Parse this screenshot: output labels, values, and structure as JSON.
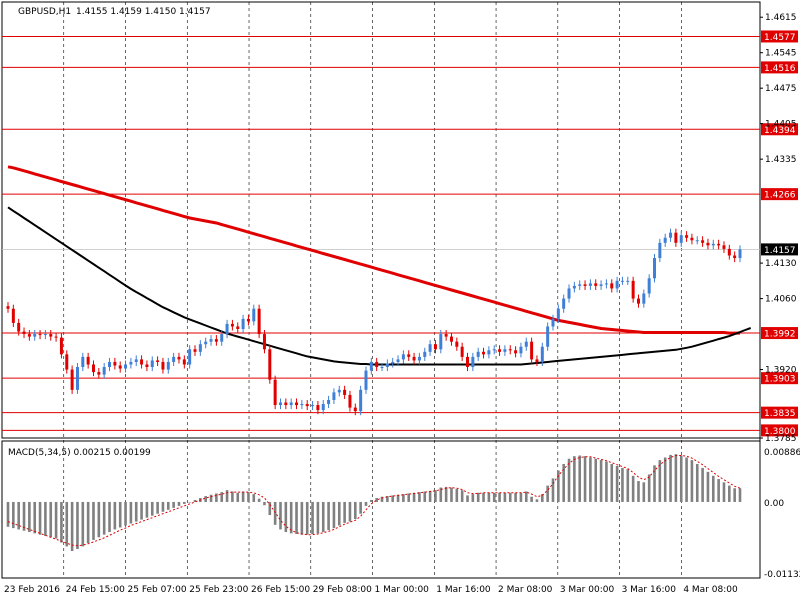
{
  "header": {
    "symbol": "GBPUSD,H1",
    "ohlc": "1.4155 1.4159 1.4150 1.4157"
  },
  "macd": {
    "label": "MACD(5,34,5) 0.00215 0.00199",
    "axis_labels": [
      "0.00886",
      "0.00",
      "-0.01132"
    ]
  },
  "colors": {
    "bull": "#3f7fd8",
    "bear": "#e00000",
    "ma_slow": "#e00000",
    "ma_fast": "#000000",
    "level_line": "#e00000",
    "level_label_bg": "#e00000",
    "grid": "#000000",
    "macd_hist": "#808080",
    "macd_signal": "#e00000"
  },
  "chart_data": [
    {
      "type": "candlestick",
      "title": "GBPUSD,H1",
      "ylim": [
        1.3785,
        1.4645
      ],
      "price_axis_ticks": [
        "1.4615",
        "1.4545",
        "1.4475",
        "1.4405",
        "1.4335",
        "1.4130",
        "1.4060",
        "1.3920",
        "1.3785"
      ],
      "levels": [
        "1.4577",
        "1.4516",
        "1.4394",
        "1.4266",
        "1.3992",
        "1.3903",
        "1.3835",
        "1.3800"
      ],
      "current_price": "1.4157",
      "x_ticks": [
        "23 Feb 2016",
        "24 Feb 15:00",
        "25 Feb 07:00",
        "25 Feb 23:00",
        "26 Feb 15:00",
        "29 Feb 08:00",
        "1 Mar 00:00",
        "1 Mar 16:00",
        "2 Mar 08:00",
        "3 Mar 00:00",
        "3 Mar 16:00",
        "4 Mar 08:00"
      ],
      "close_series": [
        1.404,
        1.4012,
        1.3995,
        1.399,
        1.3985,
        1.399,
        1.3988,
        1.399,
        1.3985,
        1.3983,
        1.395,
        1.392,
        1.388,
        1.3925,
        1.3945,
        1.393,
        1.3915,
        1.391,
        1.3925,
        1.3935,
        1.3928,
        1.3922,
        1.393,
        1.3935,
        1.394,
        1.393,
        1.3925,
        1.3938,
        1.3935,
        1.392,
        1.3935,
        1.3945,
        1.394,
        1.393,
        1.396,
        1.3955,
        1.397,
        1.3975,
        1.398,
        1.3975,
        1.399,
        1.401,
        1.4005,
        1.4,
        1.402,
        1.4015,
        1.404,
        1.399,
        1.396,
        1.39,
        1.385,
        1.3855,
        1.385,
        1.3855,
        1.385,
        1.3852,
        1.3848,
        1.385,
        1.384,
        1.3852,
        1.386,
        1.3875,
        1.388,
        1.387,
        1.3845,
        1.3838,
        1.388,
        1.3918,
        1.3935,
        1.3925,
        1.3925,
        1.3932,
        1.3935,
        1.394,
        1.395,
        1.3945,
        1.3938,
        1.3945,
        1.3955,
        1.397,
        1.396,
        1.399,
        1.3985,
        1.3975,
        1.3965,
        1.3945,
        1.3925,
        1.3945,
        1.3955,
        1.395,
        1.3958,
        1.396,
        1.3955,
        1.396,
        1.3958,
        1.3952,
        1.3965,
        1.3975,
        1.394,
        1.3935,
        1.3965,
        1.4005,
        1.402,
        1.404,
        1.406,
        1.408,
        1.4085,
        1.4088,
        1.4085,
        1.409,
        1.4085,
        1.4088,
        1.409,
        1.408,
        1.4095,
        1.4095,
        1.4095,
        1.406,
        1.405,
        1.407,
        1.41,
        1.414,
        1.417,
        1.418,
        1.419,
        1.417,
        1.4185,
        1.418,
        1.4175,
        1.4175,
        1.417,
        1.4165,
        1.4168,
        1.4165,
        1.4158,
        1.4145,
        1.414,
        1.4157
      ],
      "ma_slow": [
        1.432,
        1.4318,
        1.4315,
        1.4312,
        1.4309,
        1.4306,
        1.4303,
        1.43,
        1.4297,
        1.4294,
        1.4291,
        1.4288,
        1.4285,
        1.4282,
        1.4279,
        1.4276,
        1.4273,
        1.427,
        1.4267,
        1.4264,
        1.4261,
        1.4258,
        1.4255,
        1.4252,
        1.4249,
        1.4246,
        1.4243,
        1.424,
        1.4237,
        1.4234,
        1.4231,
        1.4228,
        1.4225,
        1.4222,
        1.4219,
        1.4217,
        1.4215,
        1.4213,
        1.4211,
        1.4209,
        1.4206,
        1.4203,
        1.42,
        1.4197,
        1.4194,
        1.4191,
        1.4188,
        1.4185,
        1.4182,
        1.4179,
        1.4176,
        1.4173,
        1.417,
        1.4167,
        1.4164,
        1.4161,
        1.4158,
        1.4155,
        1.4152,
        1.4149,
        1.4146,
        1.4143,
        1.414,
        1.4137,
        1.4134,
        1.4131,
        1.4128,
        1.4125,
        1.4122,
        1.4119,
        1.4116,
        1.4113,
        1.411,
        1.4107,
        1.4104,
        1.4101,
        1.4098,
        1.4095,
        1.4092,
        1.4089,
        1.4086,
        1.4083,
        1.408,
        1.4077,
        1.4074,
        1.4071,
        1.4068,
        1.4065,
        1.4062,
        1.4059,
        1.4056,
        1.4053,
        1.405,
        1.4047,
        1.4044,
        1.4041,
        1.4038,
        1.4035,
        1.4032,
        1.4029,
        1.4026,
        1.4023,
        1.402,
        1.4017,
        1.4015,
        1.4013,
        1.4011,
        1.4009,
        1.4007,
        1.4005,
        1.4003,
        1.4001,
        1.4,
        1.3999,
        1.3998,
        1.3997,
        1.3996,
        1.3995,
        1.3994,
        1.3993,
        1.3993,
        1.3993,
        1.3993,
        1.3993,
        1.3993,
        1.3993,
        1.3993,
        1.3993,
        1.3993,
        1.3993,
        1.3993,
        1.3993,
        1.3993,
        1.3993,
        1.3993,
        1.3992,
        1.3992,
        1.3992
      ],
      "ma_fast": [
        1.424,
        1.4233,
        1.4226,
        1.4219,
        1.4212,
        1.4205,
        1.4198,
        1.4191,
        1.4184,
        1.4177,
        1.417,
        1.4163,
        1.4156,
        1.4149,
        1.4142,
        1.4135,
        1.4128,
        1.4121,
        1.4114,
        1.4107,
        1.41,
        1.4093,
        1.4086,
        1.4079,
        1.4073,
        1.4067,
        1.4061,
        1.4055,
        1.4049,
        1.4043,
        1.4038,
        1.4033,
        1.4028,
        1.4023,
        1.4019,
        1.4015,
        1.4011,
        1.4007,
        1.4003,
        1.3999,
        1.3995,
        1.3991,
        1.3988,
        1.3985,
        1.3982,
        1.3979,
        1.3976,
        1.3973,
        1.397,
        1.3967,
        1.3964,
        1.3961,
        1.3958,
        1.3955,
        1.3952,
        1.3949,
        1.3946,
        1.3944,
        1.3942,
        1.394,
        1.3938,
        1.3936,
        1.3935,
        1.3934,
        1.3933,
        1.3932,
        1.3931,
        1.3931,
        1.393,
        1.393,
        1.393,
        1.393,
        1.393,
        1.393,
        1.393,
        1.393,
        1.393,
        1.393,
        1.393,
        1.393,
        1.393,
        1.393,
        1.393,
        1.393,
        1.393,
        1.393,
        1.393,
        1.393,
        1.393,
        1.393,
        1.393,
        1.393,
        1.393,
        1.393,
        1.393,
        1.393,
        1.393,
        1.3931,
        1.3932,
        1.3933,
        1.3934,
        1.3935,
        1.3936,
        1.3937,
        1.3938,
        1.3939,
        1.394,
        1.3941,
        1.3942,
        1.3943,
        1.3944,
        1.3945,
        1.3946,
        1.3947,
        1.3948,
        1.3949,
        1.395,
        1.3951,
        1.3952,
        1.3953,
        1.3954,
        1.3955,
        1.3956,
        1.3957,
        1.3958,
        1.3959,
        1.3961,
        1.3963,
        1.3965,
        1.3968,
        1.3971,
        1.3974,
        1.3977,
        1.398,
        1.3983,
        1.3986,
        1.399,
        1.3994,
        1.3998,
        1.4002
      ]
    },
    {
      "type": "bar",
      "title": "MACD(5,34,5)",
      "ylim": [
        -0.01132,
        0.00886
      ],
      "macd_values": [
        -0.0038,
        -0.004,
        -0.0042,
        -0.0044,
        -0.0046,
        -0.0048,
        -0.005,
        -0.0052,
        -0.0054,
        -0.0056,
        -0.0062,
        -0.0068,
        -0.0075,
        -0.0072,
        -0.0068,
        -0.0063,
        -0.0058,
        -0.0054,
        -0.005,
        -0.0046,
        -0.0042,
        -0.0039,
        -0.0036,
        -0.0033,
        -0.003,
        -0.0027,
        -0.0024,
        -0.0021,
        -0.0018,
        -0.0015,
        -0.0012,
        -0.0009,
        -0.0006,
        -0.0003,
        0.0,
        0.0003,
        0.0006,
        0.0009,
        0.0011,
        0.0013,
        0.0015,
        0.0018,
        0.0016,
        0.0014,
        0.0016,
        0.0015,
        0.0012,
        0.0005,
        -0.0005,
        -0.002,
        -0.0035,
        -0.0042,
        -0.0046,
        -0.0048,
        -0.0049,
        -0.005,
        -0.005,
        -0.0049,
        -0.0048,
        -0.0046,
        -0.0043,
        -0.004,
        -0.0036,
        -0.0032,
        -0.003,
        -0.0026,
        -0.0018,
        -0.0006,
        0.0003,
        0.0006,
        0.0008,
        0.0009,
        0.001,
        0.0011,
        0.0012,
        0.0013,
        0.0014,
        0.0015,
        0.0016,
        0.0017,
        0.0018,
        0.0022,
        0.0023,
        0.0022,
        0.002,
        0.0018,
        0.001,
        0.0012,
        0.0014,
        0.0014,
        0.0014,
        0.0014,
        0.0014,
        0.0014,
        0.0014,
        0.0014,
        0.0014,
        0.0016,
        0.0008,
        0.0004,
        0.0012,
        0.0025,
        0.0036,
        0.0048,
        0.0058,
        0.0066,
        0.007,
        0.0071,
        0.007,
        0.0068,
        0.0066,
        0.0064,
        0.0062,
        0.0058,
        0.0055,
        0.0052,
        0.005,
        0.004,
        0.0032,
        0.003,
        0.0042,
        0.0056,
        0.0064,
        0.0068,
        0.0072,
        0.0073,
        0.0071,
        0.0068,
        0.0064,
        0.0058,
        0.0052,
        0.0046,
        0.004,
        0.0035,
        0.003,
        0.0025,
        0.0021,
        0.0021
      ],
      "signal_values": [
        -0.003,
        -0.0033,
        -0.0036,
        -0.0039,
        -0.0042,
        -0.0045,
        -0.0048,
        -0.0051,
        -0.0054,
        -0.0057,
        -0.006,
        -0.0063,
        -0.0066,
        -0.0067,
        -0.0066,
        -0.0064,
        -0.0061,
        -0.0058,
        -0.0055,
        -0.0051,
        -0.0047,
        -0.0043,
        -0.004,
        -0.0036,
        -0.0033,
        -0.003,
        -0.0027,
        -0.0024,
        -0.0021,
        -0.0018,
        -0.0015,
        -0.0012,
        -0.0009,
        -0.0006,
        -0.0003,
        0.0,
        0.0003,
        0.0006,
        0.0008,
        0.001,
        0.0012,
        0.0014,
        0.0015,
        0.0015,
        0.0015,
        0.0015,
        0.0014,
        0.0011,
        0.0006,
        -0.0004,
        -0.0016,
        -0.0028,
        -0.0037,
        -0.0043,
        -0.0047,
        -0.0049,
        -0.005,
        -0.005,
        -0.0049,
        -0.0047,
        -0.0045,
        -0.0042,
        -0.0038,
        -0.0034,
        -0.0031,
        -0.0028,
        -0.0022,
        -0.0012,
        -0.0003,
        0.0003,
        0.0006,
        0.0008,
        0.0009,
        0.001,
        0.0011,
        0.0012,
        0.0013,
        0.0014,
        0.0015,
        0.0016,
        0.0017,
        0.0019,
        0.0021,
        0.0022,
        0.0021,
        0.0019,
        0.0014,
        0.0013,
        0.0013,
        0.0014,
        0.0014,
        0.0014,
        0.0014,
        0.0014,
        0.0014,
        0.0014,
        0.0014,
        0.0015,
        0.0012,
        0.0008,
        0.001,
        0.0018,
        0.0028,
        0.004,
        0.005,
        0.0059,
        0.0065,
        0.0068,
        0.0069,
        0.0069,
        0.0067,
        0.0065,
        0.0063,
        0.006,
        0.0057,
        0.0054,
        0.0051,
        0.0045,
        0.0038,
        0.0034,
        0.0038,
        0.0048,
        0.0057,
        0.0063,
        0.0068,
        0.0071,
        0.0071,
        0.007,
        0.0067,
        0.0062,
        0.0057,
        0.0051,
        0.0045,
        0.0039,
        0.0034,
        0.0029,
        0.0024,
        0.0021
      ]
    }
  ]
}
